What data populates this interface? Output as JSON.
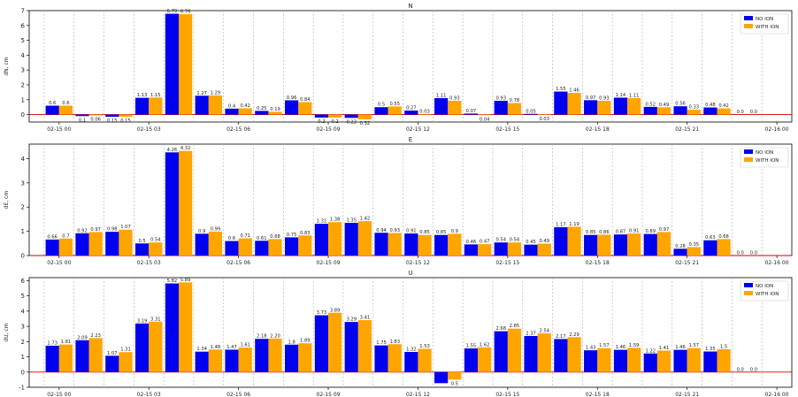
{
  "colors": {
    "no_ion": "#0000ee",
    "with_ion": "#ffa500",
    "zero_line": "#cc0000",
    "grid": "#b0b0b0"
  },
  "chart_data": [
    {
      "type": "bar",
      "title": "N",
      "ylabel": "dN, cm",
      "xlabel": "",
      "ylim": [
        -0.5,
        7
      ],
      "yticks": [
        0,
        1,
        2,
        3,
        4,
        5,
        6,
        7
      ],
      "grid": true,
      "legend": "top-right",
      "legend_entries": [
        "NO ION",
        "WITH ION"
      ],
      "x_tick_labels": [
        "02-15 00",
        "02-15 03",
        "02-15 06",
        "02-15 09",
        "02-15 12",
        "02-15 15",
        "02-15 18",
        "02-15 21",
        "02-16 00"
      ],
      "series": [
        {
          "name": "NO ION",
          "values": [
            0.6,
            -0.1,
            -0.15,
            1.13,
            6.79,
            1.27,
            0.4,
            0.25,
            0.96,
            -0.2,
            -0.22,
            0.5,
            0.27,
            1.11,
            0.07,
            0.93,
            0.05,
            1.55,
            0.97,
            1.14,
            0.52,
            0.56,
            0.48,
            0.0
          ]
        },
        {
          "name": "WITH ION",
          "values": [
            0.6,
            -0.06,
            -0.15,
            1.15,
            6.76,
            1.29,
            0.42,
            0.19,
            0.84,
            -0.2,
            -0.32,
            0.55,
            0.03,
            0.93,
            -0.04,
            0.78,
            -0.03,
            1.46,
            0.93,
            1.11,
            0.49,
            0.33,
            0.42,
            0.0
          ]
        }
      ],
      "value_labels": [
        [
          "0.6",
          "0.1",
          "0.15",
          "1.13",
          "6.79",
          "1.27",
          "0.4",
          "0.25",
          "0.96",
          "0.2",
          "0.22",
          "0.5",
          "0.27",
          "1.11",
          "0.07",
          "0.93",
          "0.05",
          "1.55",
          "0.97",
          "1.14",
          "0.52",
          "0.56",
          "0.48",
          "0.0"
        ],
        [
          "0.6",
          "0.06",
          "0.15",
          "1.15",
          "6.76",
          "1.29",
          "0.42",
          "0.19",
          "0.84",
          "0.2",
          "0.32",
          "0.55",
          "0.03",
          "0.93",
          "0.04",
          "0.78",
          "0.03",
          "1.46",
          "0.93",
          "1.11",
          "0.49",
          "0.33",
          "0.42",
          "0.0"
        ]
      ]
    },
    {
      "type": "bar",
      "title": "E",
      "ylabel": "dE, cm",
      "xlabel": "",
      "ylim": [
        0,
        4.6
      ],
      "yticks": [
        0,
        1,
        2,
        3,
        4
      ],
      "grid": true,
      "legend": "top-right",
      "legend_entries": [
        "NO ION",
        "WITH ION"
      ],
      "x_tick_labels": [
        "02-15 00",
        "02-15 03",
        "02-15 06",
        "02-15 09",
        "02-15 12",
        "02-15 15",
        "02-15 18",
        "02-15 21",
        "02-16 00"
      ],
      "series": [
        {
          "name": "NO ION",
          "values": [
            0.66,
            0.92,
            0.98,
            0.5,
            4.26,
            0.9,
            0.6,
            0.61,
            0.75,
            1.31,
            1.35,
            0.94,
            0.91,
            0.85,
            0.46,
            0.54,
            0.45,
            1.17,
            0.85,
            0.87,
            0.89,
            0.28,
            0.63,
            0.0
          ]
        },
        {
          "name": "WITH ION",
          "values": [
            0.7,
            0.97,
            1.07,
            0.54,
            4.32,
            0.99,
            0.71,
            0.68,
            0.83,
            1.38,
            1.42,
            0.93,
            0.85,
            0.9,
            0.47,
            0.54,
            0.49,
            1.19,
            0.86,
            0.91,
            0.97,
            0.35,
            0.68,
            0.0
          ]
        }
      ],
      "value_labels": [
        [
          "0.66",
          "0.92",
          "0.98",
          "0.5",
          "4.26",
          "0.9",
          "0.6",
          "0.61",
          "0.75",
          "1.31",
          "1.35",
          "0.94",
          "0.91",
          "0.85",
          "0.46",
          "0.54",
          "0.45",
          "1.17",
          "0.85",
          "0.87",
          "0.89",
          "0.28",
          "0.63",
          "0.0"
        ],
        [
          "0.7",
          "0.97",
          "1.07",
          "0.54",
          "4.32",
          "0.99",
          "0.71",
          "0.68",
          "0.83",
          "1.38",
          "1.42",
          "0.93",
          "0.85",
          "0.9",
          "0.47",
          "0.54",
          "0.49",
          "1.19",
          "0.86",
          "0.91",
          "0.97",
          "0.35",
          "0.68",
          "0.0"
        ]
      ]
    },
    {
      "type": "bar",
      "title": "U",
      "ylabel": "dU, cm",
      "xlabel": "",
      "ylim": [
        -1,
        6.2
      ],
      "yticks": [
        -1,
        0,
        1,
        2,
        3,
        4,
        5,
        6
      ],
      "grid": true,
      "legend": "top-right",
      "legend_entries": [
        "NO ION",
        "WITH ION"
      ],
      "x_tick_labels": [
        "02-15 00",
        "02-15 03",
        "02-15 06",
        "02-15 09",
        "02-15 12",
        "02-15 15",
        "02-15 18",
        "02-15 21",
        "02-16 00"
      ],
      "series": [
        {
          "name": "NO ION",
          "values": [
            1.73,
            2.09,
            1.07,
            3.19,
            5.82,
            1.34,
            1.47,
            2.18,
            1.8,
            3.73,
            3.29,
            1.75,
            1.32,
            -0.73,
            1.55,
            2.68,
            2.37,
            2.17,
            1.43,
            1.46,
            1.22,
            1.46,
            1.35,
            0.0
          ]
        },
        {
          "name": "WITH ION",
          "values": [
            1.81,
            2.23,
            1.31,
            3.31,
            5.89,
            1.48,
            1.61,
            2.2,
            1.89,
            3.89,
            3.41,
            1.83,
            1.53,
            -0.5,
            1.62,
            2.85,
            2.54,
            2.29,
            1.57,
            1.59,
            1.41,
            1.57,
            1.5,
            0.0
          ]
        }
      ],
      "value_labels": [
        [
          "1.73",
          "2.09",
          "1.07",
          "3.19",
          "5.82",
          "1.34",
          "1.47",
          "2.18",
          "1.8",
          "3.73",
          "3.29",
          "1.75",
          "1.32",
          "",
          "1.55",
          "2.68",
          "2.37",
          "2.17",
          "1.43",
          "1.46",
          "1.22",
          "1.46",
          "1.35",
          "0.0"
        ],
        [
          "1.81",
          "2.23",
          "1.31",
          "3.31",
          "5.89",
          "1.48",
          "1.61",
          "2.20",
          "1.89",
          "3.89",
          "3.41",
          "1.83",
          "1.53",
          "0.5",
          "1.62",
          "2.85",
          "2.54",
          "2.29",
          "1.57",
          "1.59",
          "1.41",
          "1.57",
          "1.5",
          "0.0"
        ]
      ]
    }
  ]
}
